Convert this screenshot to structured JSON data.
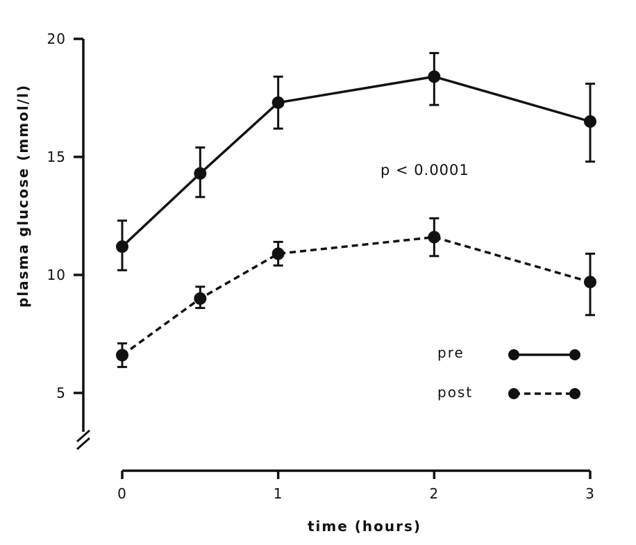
{
  "chart_data": {
    "type": "line",
    "title": "",
    "xlabel": "time (hours)",
    "ylabel": "plasma glucose (mmol/l)",
    "xlim": [
      0,
      3
    ],
    "ylim": [
      3,
      20
    ],
    "x_ticks": [
      "0",
      "1",
      "2",
      "3"
    ],
    "y_ticks": [
      "5",
      "10",
      "15",
      "20"
    ],
    "x": [
      0,
      0.5,
      1,
      2,
      3
    ],
    "series": [
      {
        "name": "pre",
        "line_style": "solid",
        "values": [
          11.2,
          14.3,
          17.3,
          18.4,
          16.5
        ],
        "err_low": [
          10.2,
          13.3,
          16.2,
          17.2,
          14.8
        ],
        "err_high": [
          12.3,
          15.4,
          18.4,
          19.4,
          18.1
        ]
      },
      {
        "name": "post",
        "line_style": "dashed",
        "values": [
          6.6,
          9.0,
          10.9,
          11.6,
          9.7
        ],
        "err_low": [
          6.1,
          8.6,
          10.4,
          10.8,
          8.3
        ],
        "err_high": [
          7.1,
          9.5,
          11.4,
          12.4,
          10.9
        ]
      }
    ],
    "annotation": "p < 0.0001",
    "legend_position": "right",
    "axis_break": "y",
    "grid": false,
    "color": "#111111"
  }
}
